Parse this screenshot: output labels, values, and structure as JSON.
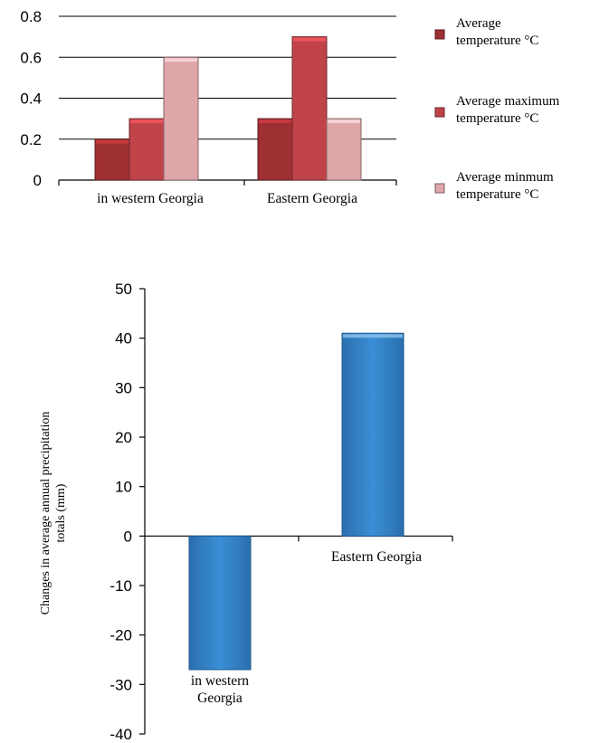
{
  "chart_data": [
    {
      "type": "bar",
      "categories": [
        "in western Georgia",
        "Eastern Georgia"
      ],
      "series": [
        {
          "name": "Average temperature °C",
          "legend_lines": [
            "Average",
            "temperature °C"
          ],
          "color": "#9e2f33",
          "values": [
            0.2,
            0.3
          ]
        },
        {
          "name": "Average maximum temperature °C",
          "legend_lines": [
            "Average maximum",
            "temperature °C"
          ],
          "color": "#c0434a",
          "values": [
            0.3,
            0.7
          ]
        },
        {
          "name": "Average minmum temperature °C",
          "legend_lines": [
            "Average minmum",
            "temperature °C"
          ],
          "color": "#dfa7aa",
          "values": [
            0.6,
            0.3
          ]
        }
      ],
      "ylim": [
        0,
        0.8
      ],
      "yticks": [
        "0",
        "0.2",
        "0.4",
        "0.6",
        "0.8"
      ],
      "grid": true,
      "legend_position": "right"
    },
    {
      "type": "bar",
      "categories": [
        "in western Georgia",
        "Eastern Georgia"
      ],
      "category_label_lines": [
        [
          "in western",
          "Georgia"
        ],
        [
          "Eastern Georgia"
        ]
      ],
      "values": [
        -27,
        41
      ],
      "color": "#2f7fc1",
      "ylabel_lines": [
        "Changes in  average annual precipitation",
        "totals (mm)"
      ],
      "ylim": [
        -40,
        50
      ],
      "yticks": [
        "50",
        "40",
        "30",
        "20",
        "10",
        "0",
        "-10",
        "-20",
        "-30",
        "-40"
      ],
      "grid": false
    }
  ]
}
